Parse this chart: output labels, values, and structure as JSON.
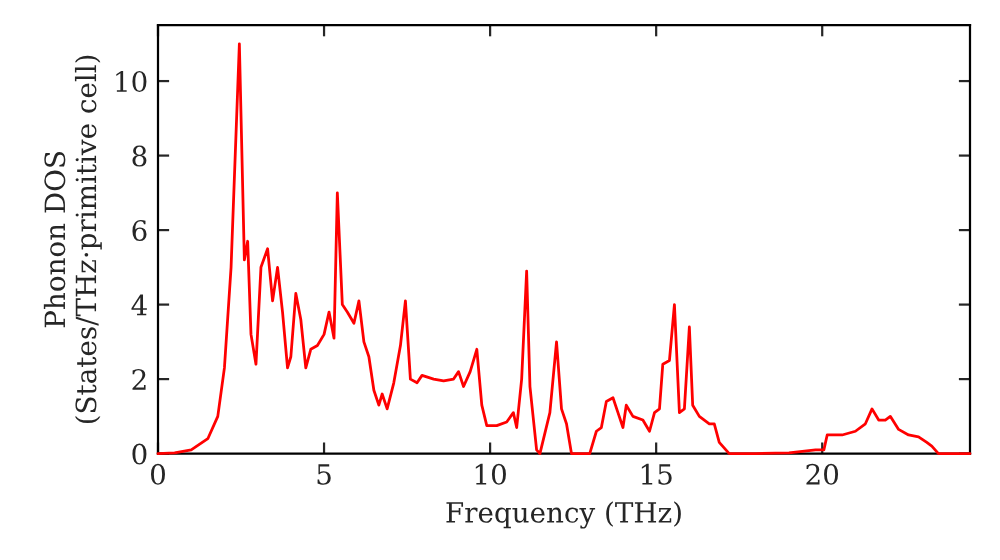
{
  "chart_data": {
    "type": "line",
    "xlabel": "Frequency (THz)",
    "ylabel": "Phonon DOS\n(States/THz·primitive cell)",
    "xlim": [
      0,
      24.45
    ],
    "ylim": [
      0,
      11.5
    ],
    "xticks": [
      0,
      5,
      10,
      15,
      20
    ],
    "yticks": [
      0,
      2,
      4,
      6,
      8,
      10
    ],
    "grid": false,
    "marker": "none",
    "line_style": "solid",
    "series": [
      {
        "color": "#ff0000",
        "x": [
          0,
          0.5,
          1.0,
          1.5,
          1.8,
          2.0,
          2.2,
          2.45,
          2.6,
          2.7,
          2.8,
          2.95,
          3.1,
          3.3,
          3.45,
          3.6,
          3.75,
          3.9,
          4.0,
          4.15,
          4.3,
          4.45,
          4.6,
          4.8,
          5.0,
          5.15,
          5.3,
          5.4,
          5.55,
          5.7,
          5.9,
          6.05,
          6.2,
          6.35,
          6.5,
          6.65,
          6.75,
          6.9,
          7.1,
          7.3,
          7.45,
          7.6,
          7.8,
          7.95,
          8.3,
          8.6,
          8.9,
          9.05,
          9.2,
          9.4,
          9.6,
          9.75,
          9.9,
          10.2,
          10.5,
          10.7,
          10.8,
          10.95,
          11.1,
          11.2,
          11.4,
          11.5,
          11.8,
          12.0,
          12.15,
          12.3,
          12.45,
          13.0,
          13.2,
          13.35,
          13.5,
          13.7,
          13.85,
          14.0,
          14.1,
          14.3,
          14.6,
          14.8,
          14.95,
          15.1,
          15.2,
          15.4,
          15.55,
          15.7,
          15.85,
          16.0,
          16.1,
          16.3,
          16.6,
          16.75,
          16.9,
          17.2,
          18.0,
          19.0,
          19.8,
          20.05,
          20.15,
          20.6,
          21.0,
          21.3,
          21.5,
          21.7,
          21.9,
          22.05,
          22.3,
          22.6,
          22.9,
          23.15,
          23.3,
          23.5,
          24.45
        ],
        "values": [
          0,
          0.02,
          0.1,
          0.4,
          1.0,
          2.3,
          5.0,
          11.0,
          5.2,
          5.7,
          3.2,
          2.4,
          5.0,
          5.5,
          4.1,
          5.0,
          3.8,
          2.3,
          2.6,
          4.3,
          3.6,
          2.3,
          2.8,
          2.9,
          3.2,
          3.8,
          3.1,
          7.0,
          4.0,
          3.8,
          3.5,
          4.1,
          3.0,
          2.6,
          1.7,
          1.3,
          1.6,
          1.2,
          1.9,
          2.9,
          4.1,
          2.0,
          1.9,
          2.1,
          2.0,
          1.95,
          2.0,
          2.2,
          1.8,
          2.2,
          2.8,
          1.3,
          0.75,
          0.75,
          0.85,
          1.1,
          0.7,
          2.0,
          4.9,
          1.8,
          0.1,
          0,
          1.1,
          3.0,
          1.2,
          0.8,
          0,
          0,
          0.6,
          0.7,
          1.4,
          1.5,
          1.1,
          0.7,
          1.3,
          1.0,
          0.9,
          0.6,
          1.1,
          1.2,
          2.4,
          2.5,
          4.0,
          1.1,
          1.2,
          3.4,
          1.3,
          1.0,
          0.8,
          0.8,
          0.3,
          0,
          0,
          0.02,
          0.1,
          0.1,
          0.5,
          0.5,
          0.6,
          0.8,
          1.2,
          0.9,
          0.9,
          1.0,
          0.65,
          0.5,
          0.45,
          0.3,
          0.2,
          0,
          0
        ]
      }
    ]
  }
}
